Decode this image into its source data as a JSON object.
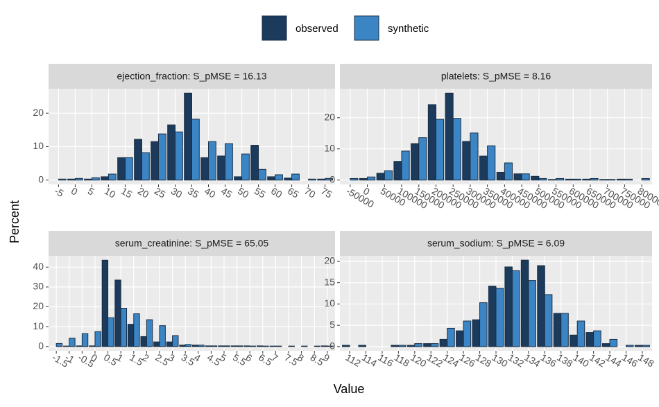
{
  "x_label": "Value",
  "y_label": "Percent",
  "chart_data": [
    {
      "type": "bar",
      "title": "ejection_fraction: S_pMSE = 16.13",
      "categories": [
        "-5",
        "0",
        "5",
        "10",
        "15",
        "20",
        "25",
        "30",
        "35",
        "40",
        "45",
        "50",
        "55",
        "60",
        "65",
        "70",
        "75"
      ],
      "series": [
        {
          "name": "observed",
          "color": "#1b3a5c",
          "values": [
            0,
            0.3,
            0.3,
            1,
            6.7,
            12.2,
            11.5,
            16.5,
            26,
            6.7,
            7.2,
            1,
            10.4,
            1,
            0.6,
            0,
            0.3
          ]
        },
        {
          "name": "synthetic",
          "color": "#3c85c4",
          "values": [
            0.3,
            0.5,
            0.7,
            1.8,
            6.7,
            8.2,
            13.8,
            14.4,
            18.2,
            11.5,
            10.9,
            7.8,
            3.2,
            1.6,
            1.8,
            0.3,
            0.5
          ]
        }
      ],
      "ylim": [
        -1.3,
        27.3
      ],
      "yticks": [
        0,
        10,
        20
      ],
      "grid": true
    },
    {
      "type": "bar",
      "title": "platelets: S_pMSE = 8.16",
      "categories": [
        "-50000",
        "0",
        "50000",
        "100000",
        "150000",
        "200000",
        "250000",
        "300000",
        "350000",
        "400000",
        "450000",
        "500000",
        "550000",
        "600000",
        "650000",
        "700000",
        "750000",
        "800000"
      ],
      "series": [
        {
          "name": "observed",
          "color": "#1b3a5c",
          "values": [
            0,
            0.5,
            2.2,
            6,
            11.7,
            24.2,
            27.9,
            12.4,
            7.7,
            2.5,
            2,
            1.2,
            0.2,
            0.3,
            0.3,
            0.2,
            0.3,
            0
          ]
        },
        {
          "name": "synthetic",
          "color": "#3c85c4",
          "values": [
            0.5,
            1,
            3,
            9.3,
            13.6,
            19.5,
            19.8,
            15.1,
            11,
            5.5,
            2,
            0.5,
            0.5,
            0.3,
            0.5,
            0.2,
            0.3,
            0.5
          ]
        }
      ],
      "ylim": [
        -1.4,
        29.3
      ],
      "yticks": [
        0,
        10,
        20
      ],
      "grid": true
    },
    {
      "type": "bar",
      "title": "serum_creatinine: S_pMSE = 65.05",
      "categories": [
        "-1.5",
        "-1",
        "-0.5",
        "0",
        "0.5",
        "1",
        "1.5",
        "2",
        "2.5",
        "3",
        "3.5",
        "4",
        "4.5",
        "5",
        "5.5",
        "6",
        "6.5",
        "7",
        "7.5",
        "8",
        "8.5",
        "9"
      ],
      "series": [
        {
          "name": "observed",
          "color": "#1b3a5c",
          "values": [
            0,
            0.2,
            0.3,
            0.3,
            43.5,
            33.5,
            11.2,
            5,
            2.3,
            2.3,
            0.7,
            0.7,
            0.3,
            0.3,
            0.3,
            0.3,
            0.3,
            0.2,
            0,
            0,
            0,
            0.3
          ]
        },
        {
          "name": "synthetic",
          "color": "#3c85c4",
          "values": [
            1.5,
            4.2,
            6.5,
            7.5,
            14.5,
            19.3,
            16.5,
            13.5,
            10.5,
            5.5,
            1,
            0.7,
            0.3,
            0.3,
            0.3,
            0.2,
            0.2,
            0.2,
            0.2,
            0.2,
            0.2,
            0.2
          ]
        }
      ],
      "ylim": [
        -2.2,
        45.7
      ],
      "yticks": [
        0,
        10,
        20,
        30,
        40
      ],
      "grid": true
    },
    {
      "type": "bar",
      "title": "serum_sodium: S_pMSE = 6.09",
      "categories": [
        "112",
        "114",
        "116",
        "118",
        "120",
        "122",
        "124",
        "126",
        "128",
        "130",
        "132",
        "134",
        "136",
        "138",
        "140",
        "142",
        "144",
        "146",
        "148"
      ],
      "series": [
        {
          "name": "observed",
          "color": "#1b3a5c",
          "values": [
            0.3,
            0.3,
            0,
            0.3,
            0.3,
            0.7,
            1.7,
            3.7,
            6.3,
            14.2,
            18.7,
            20.3,
            19,
            7.8,
            2.7,
            3.3,
            0.7,
            0,
            0.3
          ]
        },
        {
          "name": "synthetic",
          "color": "#3c85c4",
          "values": [
            0,
            0,
            0,
            0.3,
            0.7,
            0.7,
            4.3,
            6,
            10.3,
            13.7,
            17.8,
            15.5,
            12.2,
            7.8,
            6,
            3.7,
            1.7,
            0.3,
            0.3
          ]
        }
      ],
      "ylim": [
        -1,
        21.3
      ],
      "yticks": [
        0,
        5,
        10,
        15,
        20
      ],
      "grid": true
    }
  ]
}
